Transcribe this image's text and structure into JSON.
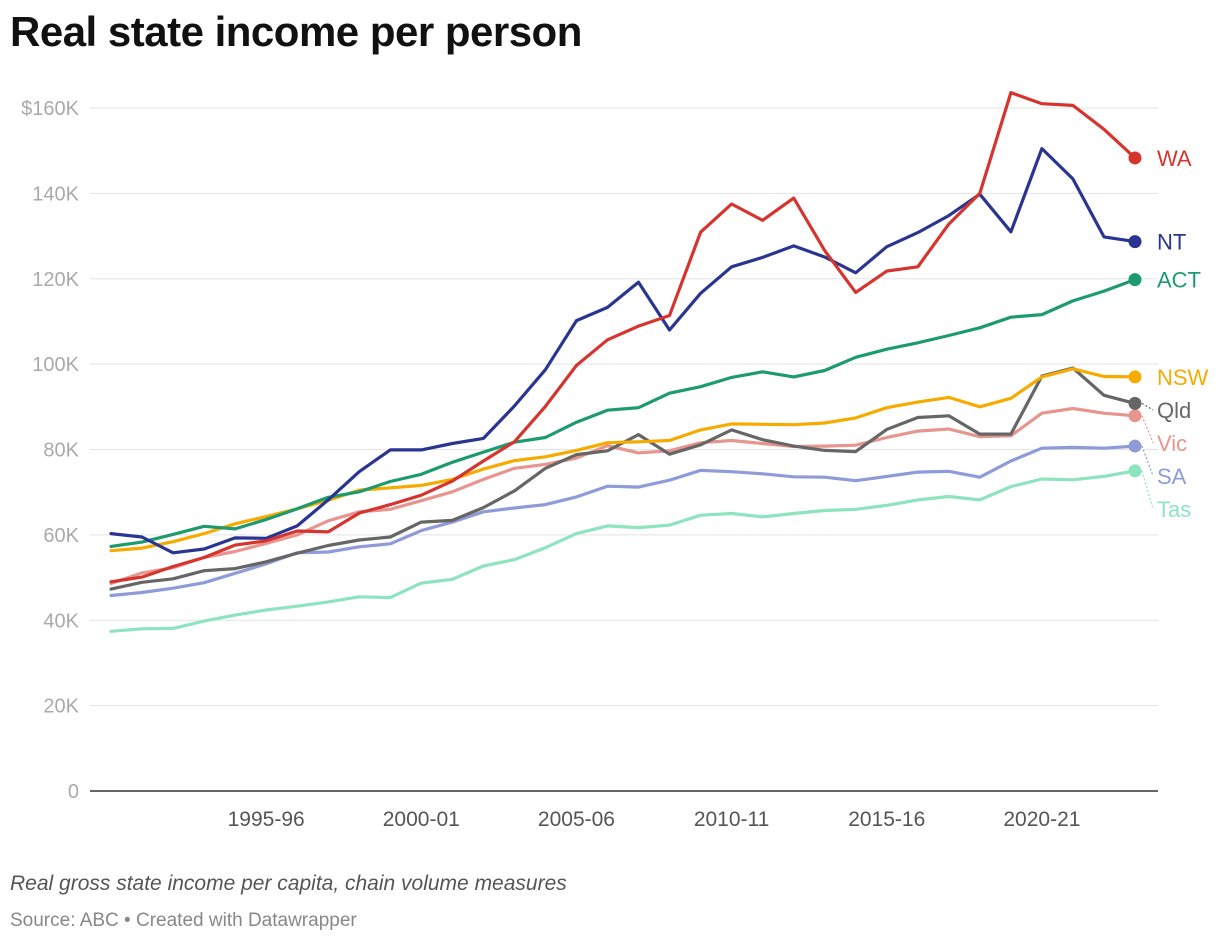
{
  "header": {
    "title": "Real state income per person"
  },
  "footer": {
    "notes": "Real gross state income per capita, chain volume measures",
    "source_label": "Source: ABC",
    "separator": " • ",
    "credit": "Created with Datawrapper"
  },
  "chart_data": {
    "type": "line",
    "title": "Real state income per person",
    "xlabel": "",
    "ylabel": "",
    "ylim": [
      0,
      165000
    ],
    "grid": true,
    "legend": "direct labels at line ends (right)",
    "x": [
      "1990-91",
      "1991-92",
      "1992-93",
      "1993-94",
      "1994-95",
      "1995-96",
      "1996-97",
      "1997-98",
      "1998-99",
      "1999-00",
      "2000-01",
      "2001-02",
      "2002-03",
      "2003-04",
      "2004-05",
      "2005-06",
      "2006-07",
      "2007-08",
      "2008-09",
      "2009-10",
      "2010-11",
      "2011-12",
      "2012-13",
      "2013-14",
      "2014-15",
      "2015-16",
      "2016-17",
      "2017-18",
      "2018-19",
      "2019-20",
      "2020-21",
      "2021-22",
      "2022-23",
      "2023-24"
    ],
    "x_tick_labels": [
      "1995-96",
      "2000-01",
      "2005-06",
      "2010-11",
      "2015-16",
      "2020-21"
    ],
    "y_ticks": [
      0,
      20000,
      40000,
      60000,
      80000,
      100000,
      120000,
      140000,
      160000
    ],
    "y_tick_labels": [
      "0",
      "20K",
      "40K",
      "60K",
      "80K",
      "100K",
      "120K",
      "140K",
      "$160K"
    ],
    "series": [
      {
        "name": "Tas",
        "color": "#8ee3c0",
        "values": [
          37400,
          38000,
          38100,
          39800,
          41200,
          42400,
          43300,
          44300,
          45500,
          45300,
          48700,
          49600,
          52700,
          54200,
          57000,
          60300,
          62100,
          61700,
          62300,
          64600,
          65000,
          64200,
          65000,
          65700,
          66000,
          66900,
          68200,
          69000,
          68200,
          71300,
          73100,
          72900,
          73700,
          75000
        ]
      },
      {
        "name": "SA",
        "color": "#8f9bd8",
        "values": [
          45800,
          46500,
          47500,
          48800,
          51000,
          53200,
          55800,
          56000,
          57200,
          57900,
          61000,
          63000,
          65400,
          66300,
          67100,
          68900,
          71400,
          71200,
          72800,
          75100,
          74800,
          74300,
          73600,
          73500,
          72700,
          73700,
          74700,
          74900,
          73500,
          77300,
          80300,
          80500,
          80300,
          80800
        ]
      },
      {
        "name": "Vic",
        "color": "#e7958f",
        "values": [
          48600,
          51100,
          52300,
          54700,
          56100,
          58000,
          60000,
          63300,
          65400,
          66000,
          68000,
          70100,
          73000,
          75600,
          76500,
          78000,
          80900,
          79200,
          79700,
          81600,
          82100,
          81400,
          80700,
          80800,
          81000,
          82800,
          84300,
          84800,
          83000,
          83200,
          88500,
          89600,
          88500,
          87900
        ]
      },
      {
        "name": "Qld",
        "color": "#666666",
        "values": [
          47300,
          48900,
          49700,
          51600,
          52100,
          53700,
          55700,
          57500,
          58800,
          59500,
          63000,
          63400,
          66400,
          70300,
          75600,
          78800,
          79700,
          83500,
          78900,
          81100,
          84600,
          82300,
          80800,
          79800,
          79500,
          84700,
          87500,
          87900,
          83600,
          83600,
          97200,
          99100,
          92700,
          90800
        ]
      },
      {
        "name": "NSW",
        "color": "#f5ab00",
        "values": [
          56300,
          56900,
          58400,
          60300,
          62600,
          64300,
          66100,
          68100,
          70500,
          71000,
          71600,
          73000,
          75400,
          77400,
          78300,
          79800,
          81600,
          81800,
          82100,
          84600,
          86000,
          85900,
          85800,
          86200,
          87400,
          89800,
          91100,
          92200,
          90000,
          92000,
          97000,
          98900,
          97100,
          97000
        ]
      },
      {
        "name": "ACT",
        "color": "#1e9b6e",
        "values": [
          57300,
          58300,
          60100,
          62000,
          61400,
          63600,
          66100,
          68800,
          70100,
          72500,
          74200,
          77000,
          79400,
          81700,
          82800,
          86400,
          89200,
          89800,
          93200,
          94700,
          96900,
          98200,
          97000,
          98500,
          101600,
          103500,
          105000,
          106700,
          108500,
          111000,
          111600,
          114800,
          117100,
          119800
        ]
      },
      {
        "name": "NT",
        "color": "#2a3591",
        "values": [
          60300,
          59500,
          55800,
          56700,
          59300,
          59200,
          62100,
          68200,
          74800,
          79900,
          79900,
          81400,
          82600,
          90200,
          98700,
          110200,
          113300,
          119200,
          108000,
          116600,
          122800,
          125000,
          127700,
          125100,
          121400,
          127500,
          130800,
          134800,
          139800,
          131000,
          150500,
          143400,
          129800,
          128700
        ]
      },
      {
        "name": "WA",
        "color": "#d5352e",
        "values": [
          49000,
          50100,
          52600,
          54700,
          57600,
          58600,
          60900,
          60700,
          65100,
          67100,
          69300,
          72600,
          77300,
          81800,
          90100,
          99700,
          105700,
          108900,
          111400,
          130900,
          137500,
          133700,
          138900,
          126600,
          116800,
          121800,
          122800,
          132800,
          140000,
          163600,
          161000,
          160600,
          155000,
          148300
        ]
      }
    ]
  }
}
